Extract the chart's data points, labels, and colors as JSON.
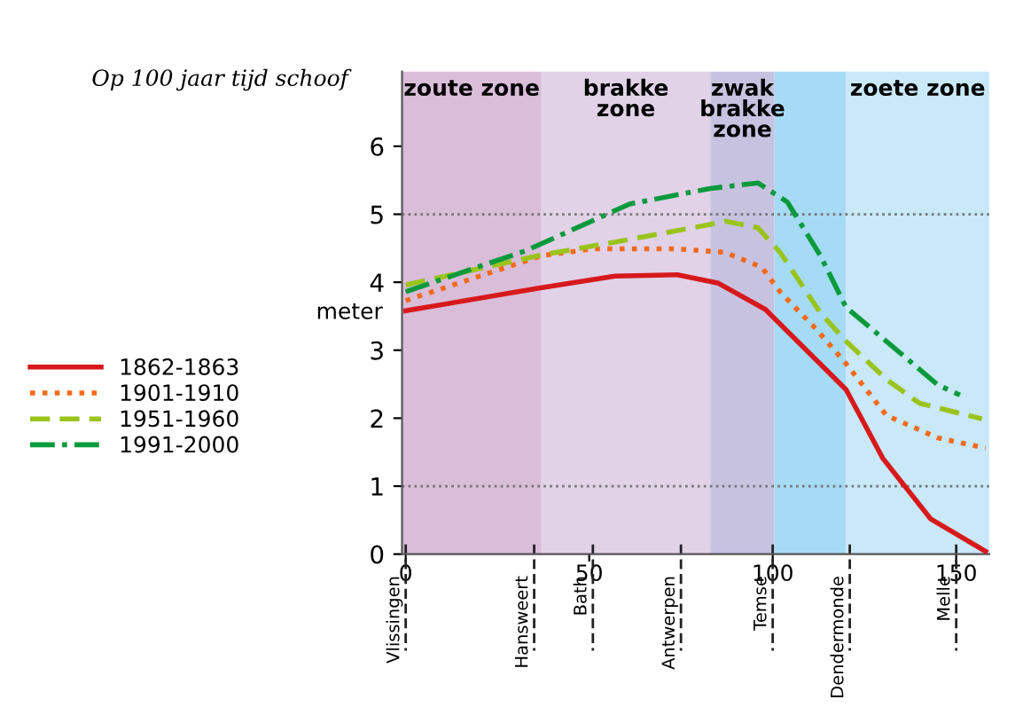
{
  "chart_data": {
    "type": "line",
    "title": "Op 100 jaar tijd schoof",
    "ylabel": "meter",
    "xlim": [
      -1,
      159
    ],
    "xticks": [
      0,
      50,
      100,
      150
    ],
    "ylim": [
      0,
      7.1
    ],
    "yticks": [
      0,
      1,
      2,
      3,
      4,
      5,
      6
    ],
    "grid": false,
    "legend": "left",
    "marker": "none",
    "series": [
      {
        "name": "1862-1863",
        "color": "#d7191c",
        "line_style": "solid",
        "x": [
          0,
          36,
          57,
          74,
          85,
          98,
          120,
          130,
          143,
          158
        ],
        "values": [
          3.58,
          3.91,
          4.09,
          4.11,
          3.99,
          3.6,
          2.42,
          1.41,
          0.52,
          0.04
        ]
      },
      {
        "name": "1901-1910",
        "color": "#f26a1b",
        "line_style": "dotted",
        "x": [
          0,
          37,
          51,
          74,
          87,
          97,
          102,
          112,
          120,
          131,
          145,
          158
        ],
        "values": [
          3.73,
          4.39,
          4.49,
          4.49,
          4.44,
          4.22,
          3.86,
          3.3,
          2.8,
          2.04,
          1.71,
          1.56
        ]
      },
      {
        "name": "1951-1960",
        "color": "#9ac31c",
        "line_style": "dashed",
        "x": [
          0,
          36,
          60,
          83,
          87,
          96,
          102,
          113,
          120,
          131,
          140,
          157
        ],
        "values": [
          3.96,
          4.39,
          4.62,
          4.85,
          4.9,
          4.8,
          4.44,
          3.55,
          3.13,
          2.57,
          2.22,
          1.99
        ]
      },
      {
        "name": "1991-2000",
        "color": "#0a9a3c",
        "line_style": "dashdot",
        "x": [
          0,
          33,
          61,
          83,
          96,
          104,
          113,
          120,
          131,
          145,
          151
        ],
        "values": [
          3.86,
          4.47,
          5.15,
          5.38,
          5.46,
          5.18,
          4.39,
          3.63,
          3.13,
          2.49,
          2.34
        ]
      }
    ],
    "bands": [
      {
        "axis": "x",
        "from": -1,
        "to": 37,
        "label": "zoute zone",
        "color": "#d9bdd9"
      },
      {
        "axis": "x",
        "from": 37,
        "to": 83,
        "label": "brakke\nzone",
        "color": "#e1d2e8"
      },
      {
        "axis": "x",
        "from": 83,
        "to": 100.5,
        "label": "zwak\nbrakke\nzone",
        "color": "#c8c2e1"
      },
      {
        "axis": "x",
        "from": 100.5,
        "to": 120,
        "label": null,
        "color": "#a5dbf5"
      },
      {
        "axis": "x",
        "from": 120,
        "to": 159,
        "label": "zoete zone",
        "color": "#c9e8f8"
      }
    ],
    "ref_lines": [
      {
        "axis": "y",
        "value": 1,
        "label": null,
        "color": "#777777",
        "line_style": "dotted"
      },
      {
        "axis": "y",
        "value": 5,
        "label": null,
        "color": "#777777",
        "line_style": "dotted"
      },
      {
        "axis": "x",
        "value": 0,
        "label": "Vlissingen",
        "color": "#222222",
        "line_style": "dashed"
      },
      {
        "axis": "x",
        "value": 35,
        "label": "Hansweert",
        "color": "#222222",
        "line_style": "dashed"
      },
      {
        "axis": "x",
        "value": 51,
        "label": "Bath",
        "color": "#222222",
        "line_style": "dashed"
      },
      {
        "axis": "x",
        "value": 75,
        "label": "Antwerpen",
        "color": "#222222",
        "line_style": "dashed"
      },
      {
        "axis": "x",
        "value": 100,
        "label": "Temse",
        "color": "#222222",
        "line_style": "dashed"
      },
      {
        "axis": "x",
        "value": 121,
        "label": "Dendermonde",
        "color": "#222222",
        "line_style": "dashed"
      },
      {
        "axis": "x",
        "value": 150,
        "label": "Melle",
        "color": "#222222",
        "line_style": "dashed"
      }
    ]
  }
}
